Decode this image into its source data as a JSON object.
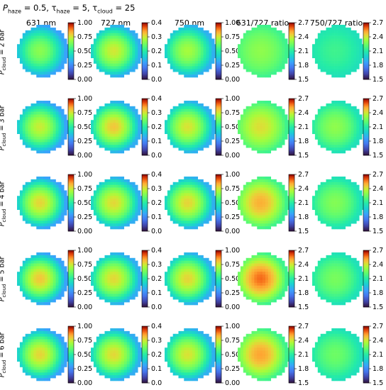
{
  "title": {
    "haze_pressure_symbol": "P",
    "haze_pressure_sub": "haze",
    "haze_pressure_value": "= 0.5,",
    "haze_tau_symbol": "τ",
    "haze_tau_sub": "haze",
    "haze_tau_value": "= 5,",
    "cloud_tau_symbol": "τ",
    "cloud_tau_sub": "cloud",
    "cloud_tau_value": "= 25"
  },
  "columns": [
    "631 nm",
    "727 nm",
    "750 nm",
    "631/727 ratio",
    "750/727 ratio"
  ],
  "row_label_symbol": "P",
  "row_label_sub": "cloud",
  "rows": [
    "= 2 bar",
    "= 3 bar",
    "= 4 bar",
    "= 5 bar",
    "= 6 bar"
  ],
  "colormap": "turbo",
  "chart_data": {
    "type": "heatmap",
    "grid": "disk-shaped pixel maps (planet disk)",
    "colorbars": [
      {
        "column": "631 nm",
        "range": [
          0.0,
          1.0
        ],
        "ticks": [
          "0.00",
          "0.25",
          "0.50",
          "0.75",
          "1.00"
        ]
      },
      {
        "column": "727 nm",
        "range": [
          0.0,
          0.4
        ],
        "ticks": [
          "0.0",
          "0.1",
          "0.2",
          "0.3",
          "0.4"
        ]
      },
      {
        "column": "750 nm",
        "range": [
          0.0,
          1.0
        ],
        "ticks": [
          "0.00",
          "0.25",
          "0.50",
          "0.75",
          "1.00"
        ]
      },
      {
        "column": "631/727 ratio",
        "range": [
          1.5,
          2.7
        ],
        "ticks": [
          "1.5",
          "1.8",
          "2.1",
          "2.4",
          "2.7"
        ]
      },
      {
        "column": "750/727 ratio",
        "range": [
          1.5,
          2.7
        ],
        "ticks": [
          "1.5",
          "1.8",
          "2.1",
          "2.4",
          "2.7"
        ]
      }
    ],
    "panels": [
      [
        {
          "center": 0.66,
          "edge": 0.3
        },
        {
          "center": 0.3,
          "edge": 0.13
        },
        {
          "center": 0.7,
          "edge": 0.33
        },
        {
          "center": 2.3,
          "edge": 2.15
        },
        {
          "center": 2.15,
          "edge": 2.05
        }
      ],
      [
        {
          "center": 0.74,
          "edge": 0.3
        },
        {
          "center": 0.32,
          "edge": 0.13
        },
        {
          "center": 0.76,
          "edge": 0.33
        },
        {
          "center": 2.42,
          "edge": 2.15
        },
        {
          "center": 2.3,
          "edge": 2.05
        }
      ],
      [
        {
          "center": 0.78,
          "edge": 0.3
        },
        {
          "center": 0.31,
          "edge": 0.13
        },
        {
          "center": 0.78,
          "edge": 0.33
        },
        {
          "center": 2.5,
          "edge": 2.15
        },
        {
          "center": 2.28,
          "edge": 2.05
        }
      ],
      [
        {
          "center": 0.8,
          "edge": 0.3
        },
        {
          "center": 0.31,
          "edge": 0.13
        },
        {
          "center": 0.78,
          "edge": 0.33
        },
        {
          "center": 2.58,
          "edge": 2.15
        },
        {
          "center": 2.26,
          "edge": 2.05
        }
      ],
      [
        {
          "center": 0.78,
          "edge": 0.3
        },
        {
          "center": 0.31,
          "edge": 0.13
        },
        {
          "center": 0.76,
          "edge": 0.33
        },
        {
          "center": 2.52,
          "edge": 2.15
        },
        {
          "center": 2.24,
          "edge": 2.05
        }
      ]
    ]
  }
}
